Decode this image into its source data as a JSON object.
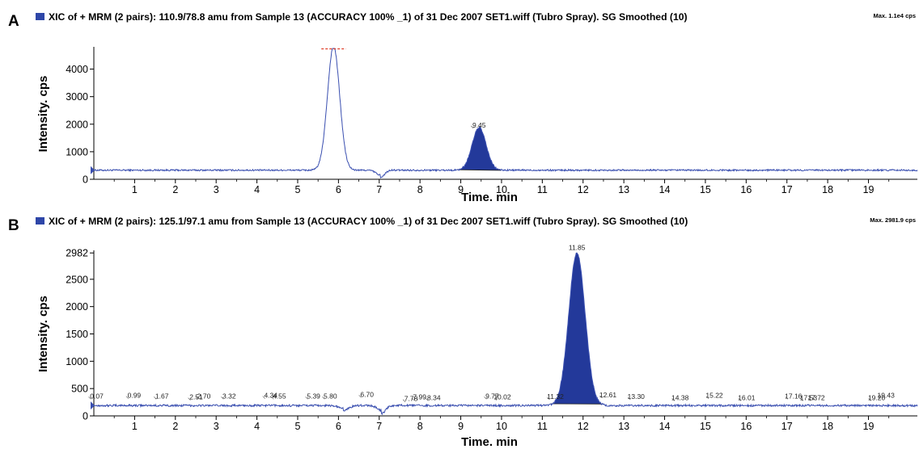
{
  "colors": {
    "trace": "#3a4fb0",
    "fill": "#23399a",
    "axis": "#000000",
    "saturation_mark": "#e0402a",
    "legend_swatch": "#2e46a8"
  },
  "chart_data": [
    {
      "type": "line",
      "panel_label": "A",
      "title": "XIC of + MRM (2 pairs): 110.9/78.8 amu from Sample 13 (ACCURACY 100% _1) of 31 Dec 2007 SET1.wiff (Tubro Spray). SG Smoothed (10)",
      "max_label": "Max. 1.1e4 cps",
      "xlabel": "Time. min",
      "ylabel": "Intensity. cps",
      "xlim": [
        0,
        20.2
      ],
      "ylim": [
        0,
        4750
      ],
      "x_ticks": [
        1,
        2,
        3,
        4,
        5,
        6,
        7,
        8,
        9,
        10,
        11,
        12,
        13,
        14,
        15,
        16,
        17,
        18,
        19
      ],
      "y_ticks": [
        0,
        1000,
        2000,
        3000,
        4000
      ],
      "x_tick_labels": [
        "1",
        "2",
        "3",
        "4",
        "5",
        "6",
        "7",
        "8",
        "9",
        "10",
        "11",
        "12",
        "13",
        "14",
        "15",
        "16",
        "17",
        "18",
        "19"
      ],
      "y_tick_labels": [
        "0",
        "1000",
        "2000",
        "3000",
        "4000"
      ],
      "grid": false,
      "baseline": 330,
      "features": [
        {
          "kind": "gauss",
          "center": 5.88,
          "height": 4500,
          "width": 0.15,
          "note": "saturated peak, clipped at top"
        },
        {
          "kind": "dip",
          "center": 7.02,
          "depth": 280,
          "width": 0.1
        },
        {
          "kind": "gauss",
          "center": 9.45,
          "height": 1550,
          "width": 0.17,
          "filled": true
        }
      ],
      "peak_labels": [
        {
          "x": 9.45,
          "y": 1880,
          "label": "9.45"
        }
      ]
    },
    {
      "type": "line",
      "panel_label": "B",
      "title": "XIC of + MRM (2 pairs): 125.1/97.1 amu from Sample 13 (ACCURACY 100% _1) of 31 Dec 2007 SET1.wiff (Tubro Spray). SG Smoothed (10)",
      "max_label": "Max. 2981.9 cps",
      "xlabel": "Time. min",
      "ylabel": "Intensity. cps",
      "xlim": [
        0,
        20.2
      ],
      "ylim": [
        0,
        3000
      ],
      "x_ticks": [
        1,
        2,
        3,
        4,
        5,
        6,
        7,
        8,
        9,
        10,
        11,
        12,
        13,
        14,
        15,
        16,
        17,
        18,
        19
      ],
      "y_ticks": [
        0,
        500,
        1000,
        1500,
        2000,
        2500,
        2982
      ],
      "x_tick_labels": [
        "1",
        "2",
        "3",
        "4",
        "5",
        "6",
        "7",
        "8",
        "9",
        "10",
        "11",
        "12",
        "13",
        "14",
        "15",
        "16",
        "17",
        "18",
        "19"
      ],
      "y_tick_labels": [
        "0",
        "500",
        "1000",
        "1500",
        "2000",
        "2500",
        "2982"
      ],
      "grid": false,
      "baseline": 190,
      "features": [
        {
          "kind": "dip",
          "center": 6.12,
          "depth": 90,
          "width": 0.12
        },
        {
          "kind": "dip",
          "center": 7.05,
          "depth": 150,
          "width": 0.1
        },
        {
          "kind": "gauss",
          "center": 11.85,
          "height": 2790,
          "width": 0.2,
          "filled": true
        }
      ],
      "peak_labels": [
        {
          "x": 0.07,
          "y": 320,
          "label": "0.07"
        },
        {
          "x": 0.99,
          "y": 330,
          "label": "0.99"
        },
        {
          "x": 1.67,
          "y": 320,
          "label": "1.67"
        },
        {
          "x": 2.51,
          "y": 300,
          "label": "2.51"
        },
        {
          "x": 2.7,
          "y": 320,
          "label": "2.70"
        },
        {
          "x": 3.32,
          "y": 320,
          "label": "3.32"
        },
        {
          "x": 4.34,
          "y": 330,
          "label": "4.34"
        },
        {
          "x": 4.55,
          "y": 320,
          "label": "4.55"
        },
        {
          "x": 5.39,
          "y": 320,
          "label": "5.39"
        },
        {
          "x": 5.8,
          "y": 320,
          "label": "5.80"
        },
        {
          "x": 6.7,
          "y": 350,
          "label": "6.70"
        },
        {
          "x": 7.78,
          "y": 270,
          "label": "7.78"
        },
        {
          "x": 7.99,
          "y": 300,
          "label": "7.99"
        },
        {
          "x": 8.34,
          "y": 290,
          "label": "8.34"
        },
        {
          "x": 9.77,
          "y": 320,
          "label": "9.77"
        },
        {
          "x": 10.02,
          "y": 300,
          "label": "10.02"
        },
        {
          "x": 11.32,
          "y": 310,
          "label": "11.32"
        },
        {
          "x": 11.85,
          "y": 3040,
          "label": "11.85"
        },
        {
          "x": 12.61,
          "y": 340,
          "label": "12.61"
        },
        {
          "x": 13.3,
          "y": 310,
          "label": "13.30"
        },
        {
          "x": 14.38,
          "y": 290,
          "label": "14.38"
        },
        {
          "x": 15.22,
          "y": 330,
          "label": "15.22"
        },
        {
          "x": 16.01,
          "y": 290,
          "label": "16.01"
        },
        {
          "x": 17.16,
          "y": 320,
          "label": "17.16"
        },
        {
          "x": 17.53,
          "y": 290,
          "label": "17.53"
        },
        {
          "x": 17.72,
          "y": 290,
          "label": "17.72"
        },
        {
          "x": 19.2,
          "y": 290,
          "label": "19.20"
        },
        {
          "x": 19.43,
          "y": 330,
          "label": "19.43"
        }
      ]
    }
  ]
}
